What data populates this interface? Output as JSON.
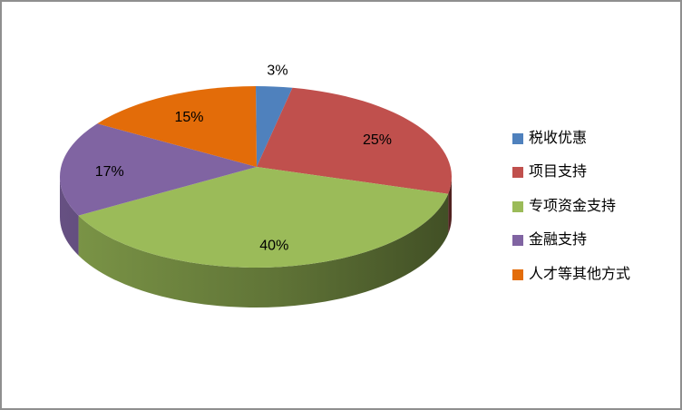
{
  "frame": {
    "border_color": "#8f8f8f",
    "background": "#ffffff"
  },
  "chart_data": {
    "type": "pie",
    "effect": "3d",
    "title": "",
    "labels": [
      "税收优惠",
      "项目支持",
      "专项资金支持",
      "金融支持",
      "人才等其他方式"
    ],
    "values": [
      3,
      25,
      40,
      17,
      15
    ],
    "percent_labels": [
      "3%",
      "25%",
      "40%",
      "17%",
      "15%"
    ],
    "colors": [
      "#4F81BD",
      "#C0504D",
      "#9BBB59",
      "#8064A2",
      "#E36C09"
    ],
    "start_angle_deg": 0,
    "direction": "clockwise",
    "legend_position": "right",
    "label_color": "#000000"
  }
}
